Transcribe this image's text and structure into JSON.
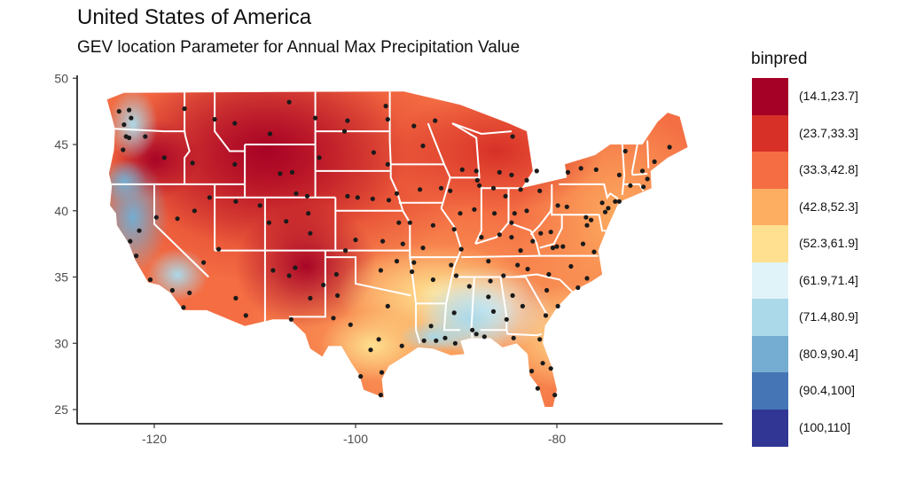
{
  "header": {
    "title": "United States of America",
    "subtitle": "GEV location Parameter for Annual Max Precipitation Value"
  },
  "axes": {
    "x_ticks": [
      "-120",
      "-100",
      "-80"
    ],
    "y_ticks": [
      "50",
      "45",
      "40",
      "35",
      "30",
      "25"
    ]
  },
  "legend": {
    "title": "binpred",
    "items": [
      {
        "label": "(14.1,23.7]",
        "color": "#a50026"
      },
      {
        "label": "(23.7,33.3]",
        "color": "#d73027"
      },
      {
        "label": "(33.3,42.8]",
        "color": "#f46d43"
      },
      {
        "label": "(42.8,52.3]",
        "color": "#fdae61"
      },
      {
        "label": "(52.3,61.9]",
        "color": "#fee090"
      },
      {
        "label": "(61.9,71.4]",
        "color": "#e0f3f8"
      },
      {
        "label": "(71.4,80.9]",
        "color": "#abd9e9"
      },
      {
        "label": "(80.9,90.4]",
        "color": "#74add1"
      },
      {
        "label": "(90.4,100]",
        "color": "#4575b4"
      },
      {
        "label": "(100,110]",
        "color": "#313695"
      }
    ]
  },
  "chart_data": {
    "type": "heatmap",
    "xlim": [
      -127.5,
      -62.5
    ],
    "ylim": [
      24,
      50.5
    ],
    "points": [
      [
        -123.5,
        47.5
      ],
      [
        -123.0,
        46.5
      ],
      [
        -122.5,
        47.6
      ],
      [
        -122.3,
        47.0
      ],
      [
        -122.8,
        45.6
      ],
      [
        -122.5,
        45.5
      ],
      [
        -123.1,
        44.6
      ],
      [
        -120.9,
        45.6
      ],
      [
        -119.0,
        44.0
      ],
      [
        -117.0,
        47.7
      ],
      [
        -116.2,
        43.6
      ],
      [
        -114.0,
        46.9
      ],
      [
        -112.0,
        46.6
      ],
      [
        -108.5,
        45.8
      ],
      [
        -106.6,
        48.2
      ],
      [
        -104.0,
        47.0
      ],
      [
        -103.6,
        44.0
      ],
      [
        -100.8,
        46.8
      ],
      [
        -97.0,
        47.9
      ],
      [
        -96.8,
        43.5
      ],
      [
        -98.2,
        44.4
      ],
      [
        -101.1,
        46.0
      ],
      [
        -112.0,
        43.5
      ],
      [
        -111.9,
        40.7
      ],
      [
        -109.5,
        40.4
      ],
      [
        -107.5,
        42.8
      ],
      [
        -106.3,
        42.9
      ],
      [
        -105.9,
        41.3
      ],
      [
        -104.8,
        41.1
      ],
      [
        -104.7,
        39.8
      ],
      [
        -104.5,
        38.3
      ],
      [
        -106.9,
        39.2
      ],
      [
        -108.6,
        39.1
      ],
      [
        -113.6,
        37.1
      ],
      [
        -115.1,
        36.1
      ],
      [
        -114.5,
        41.0
      ],
      [
        -116.0,
        40.0
      ],
      [
        -117.7,
        39.4
      ],
      [
        -119.8,
        39.5
      ],
      [
        -121.5,
        38.5
      ],
      [
        -122.4,
        37.7
      ],
      [
        -121.8,
        36.6
      ],
      [
        -120.4,
        34.8
      ],
      [
        -118.2,
        34.0
      ],
      [
        -117.1,
        32.7
      ],
      [
        -116.5,
        33.8
      ],
      [
        -111.9,
        33.4
      ],
      [
        -110.9,
        32.1
      ],
      [
        -108.2,
        35.5
      ],
      [
        -106.6,
        35.1
      ],
      [
        -106.4,
        31.8
      ],
      [
        -104.5,
        33.4
      ],
      [
        -101.9,
        35.2
      ],
      [
        -101.8,
        33.6
      ],
      [
        -102.2,
        31.9
      ],
      [
        -100.5,
        31.4
      ],
      [
        -98.5,
        29.5
      ],
      [
        -97.7,
        30.3
      ],
      [
        -95.4,
        29.8
      ],
      [
        -96.8,
        32.8
      ],
      [
        -97.5,
        35.5
      ],
      [
        -95.9,
        36.2
      ],
      [
        -94.2,
        36.1
      ],
      [
        -92.3,
        34.8
      ],
      [
        -90.2,
        32.3
      ],
      [
        -91.1,
        30.4
      ],
      [
        -90.1,
        30.0
      ],
      [
        -92.0,
        30.2
      ],
      [
        -93.2,
        30.2
      ],
      [
        -88.0,
        30.7
      ],
      [
        -87.2,
        30.5
      ],
      [
        -86.3,
        32.4
      ],
      [
        -86.8,
        33.5
      ],
      [
        -85.0,
        31.8
      ],
      [
        -84.3,
        30.4
      ],
      [
        -83.4,
        32.8
      ],
      [
        -84.4,
        33.6
      ],
      [
        -82.5,
        27.9
      ],
      [
        -81.7,
        30.3
      ],
      [
        -81.4,
        28.5
      ],
      [
        -80.6,
        28.1
      ],
      [
        -80.2,
        26.1
      ],
      [
        -81.9,
        26.6
      ],
      [
        -81.1,
        32.1
      ],
      [
        -79.9,
        32.8
      ],
      [
        -81.0,
        34.0
      ],
      [
        -80.8,
        35.2
      ],
      [
        -78.6,
        35.8
      ],
      [
        -77.9,
        34.2
      ],
      [
        -76.3,
        36.9
      ],
      [
        -77.4,
        37.5
      ],
      [
        -79.4,
        37.3
      ],
      [
        -80.0,
        37.3
      ],
      [
        -80.6,
        38.4
      ],
      [
        -81.6,
        38.3
      ],
      [
        -79.9,
        40.4
      ],
      [
        -77.0,
        38.9
      ],
      [
        -76.6,
        39.3
      ],
      [
        -75.2,
        39.9
      ],
      [
        -74.2,
        40.7
      ],
      [
        -73.8,
        40.7
      ],
      [
        -73.8,
        42.7
      ],
      [
        -76.1,
        43.1
      ],
      [
        -77.6,
        43.2
      ],
      [
        -78.9,
        42.9
      ],
      [
        -71.0,
        42.4
      ],
      [
        -71.4,
        41.8
      ],
      [
        -72.7,
        41.9
      ],
      [
        -71.5,
        43.0
      ],
      [
        -70.3,
        43.7
      ],
      [
        -68.8,
        44.8
      ],
      [
        -73.2,
        44.5
      ],
      [
        -83.0,
        40.0
      ],
      [
        -84.2,
        39.8
      ],
      [
        -84.5,
        39.1
      ],
      [
        -81.7,
        41.5
      ],
      [
        -83.6,
        41.6
      ],
      [
        -85.7,
        38.2
      ],
      [
        -84.5,
        38.0
      ],
      [
        -86.8,
        36.2
      ],
      [
        -85.3,
        35.1
      ],
      [
        -83.9,
        35.9
      ],
      [
        -90.0,
        35.1
      ],
      [
        -88.7,
        34.3
      ],
      [
        -89.6,
        39.8
      ],
      [
        -87.7,
        41.9
      ],
      [
        -89.4,
        43.1
      ],
      [
        -88.0,
        43.0
      ],
      [
        -93.3,
        44.9
      ],
      [
        -92.1,
        46.8
      ],
      [
        -94.2,
        46.4
      ],
      [
        -96.8,
        46.9
      ],
      [
        -93.6,
        41.6
      ],
      [
        -91.5,
        41.7
      ],
      [
        -90.6,
        41.5
      ],
      [
        -95.9,
        41.3
      ],
      [
        -96.7,
        40.8
      ],
      [
        -98.3,
        40.9
      ],
      [
        -100.8,
        41.1
      ],
      [
        -97.3,
        37.7
      ],
      [
        -95.7,
        39.1
      ],
      [
        -94.6,
        39.1
      ],
      [
        -92.3,
        38.9
      ],
      [
        -90.2,
        38.6
      ],
      [
        -93.3,
        37.2
      ],
      [
        -86.2,
        39.8
      ],
      [
        -87.5,
        38.0
      ],
      [
        -85.1,
        41.1
      ],
      [
        -86.3,
        41.7
      ],
      [
        -84.5,
        42.7
      ],
      [
        -83.0,
        42.3
      ],
      [
        -85.7,
        42.9
      ],
      [
        -84.4,
        45.6
      ],
      [
        -82.0,
        43.0
      ],
      [
        -77.0,
        34.9
      ],
      [
        -89.5,
        37.1
      ],
      [
        -99.5,
        27.5
      ],
      [
        -97.4,
        27.8
      ],
      [
        -97.5,
        26.1
      ],
      [
        -106.0,
        35.7
      ],
      [
        -103.2,
        34.4
      ],
      [
        -100.0,
        37.8
      ],
      [
        -101.0,
        37.0
      ],
      [
        -99.8,
        41.0
      ],
      [
        -95.3,
        37.5
      ],
      [
        -94.4,
        35.4
      ],
      [
        -92.5,
        31.3
      ],
      [
        -88.4,
        31.0
      ],
      [
        -87.9,
        42.3
      ],
      [
        -88.2,
        40.1
      ],
      [
        -90.5,
        35.9
      ],
      [
        -77.1,
        39.5
      ],
      [
        -74.9,
        40.2
      ],
      [
        -75.5,
        40.6
      ],
      [
        -79.0,
        40.3
      ],
      [
        -82.4,
        37.7
      ],
      [
        -83.6,
        37.0
      ],
      [
        -80.4,
        37.2
      ],
      [
        -86.6,
        34.7
      ],
      [
        -82.9,
        35.6
      ]
    ]
  }
}
